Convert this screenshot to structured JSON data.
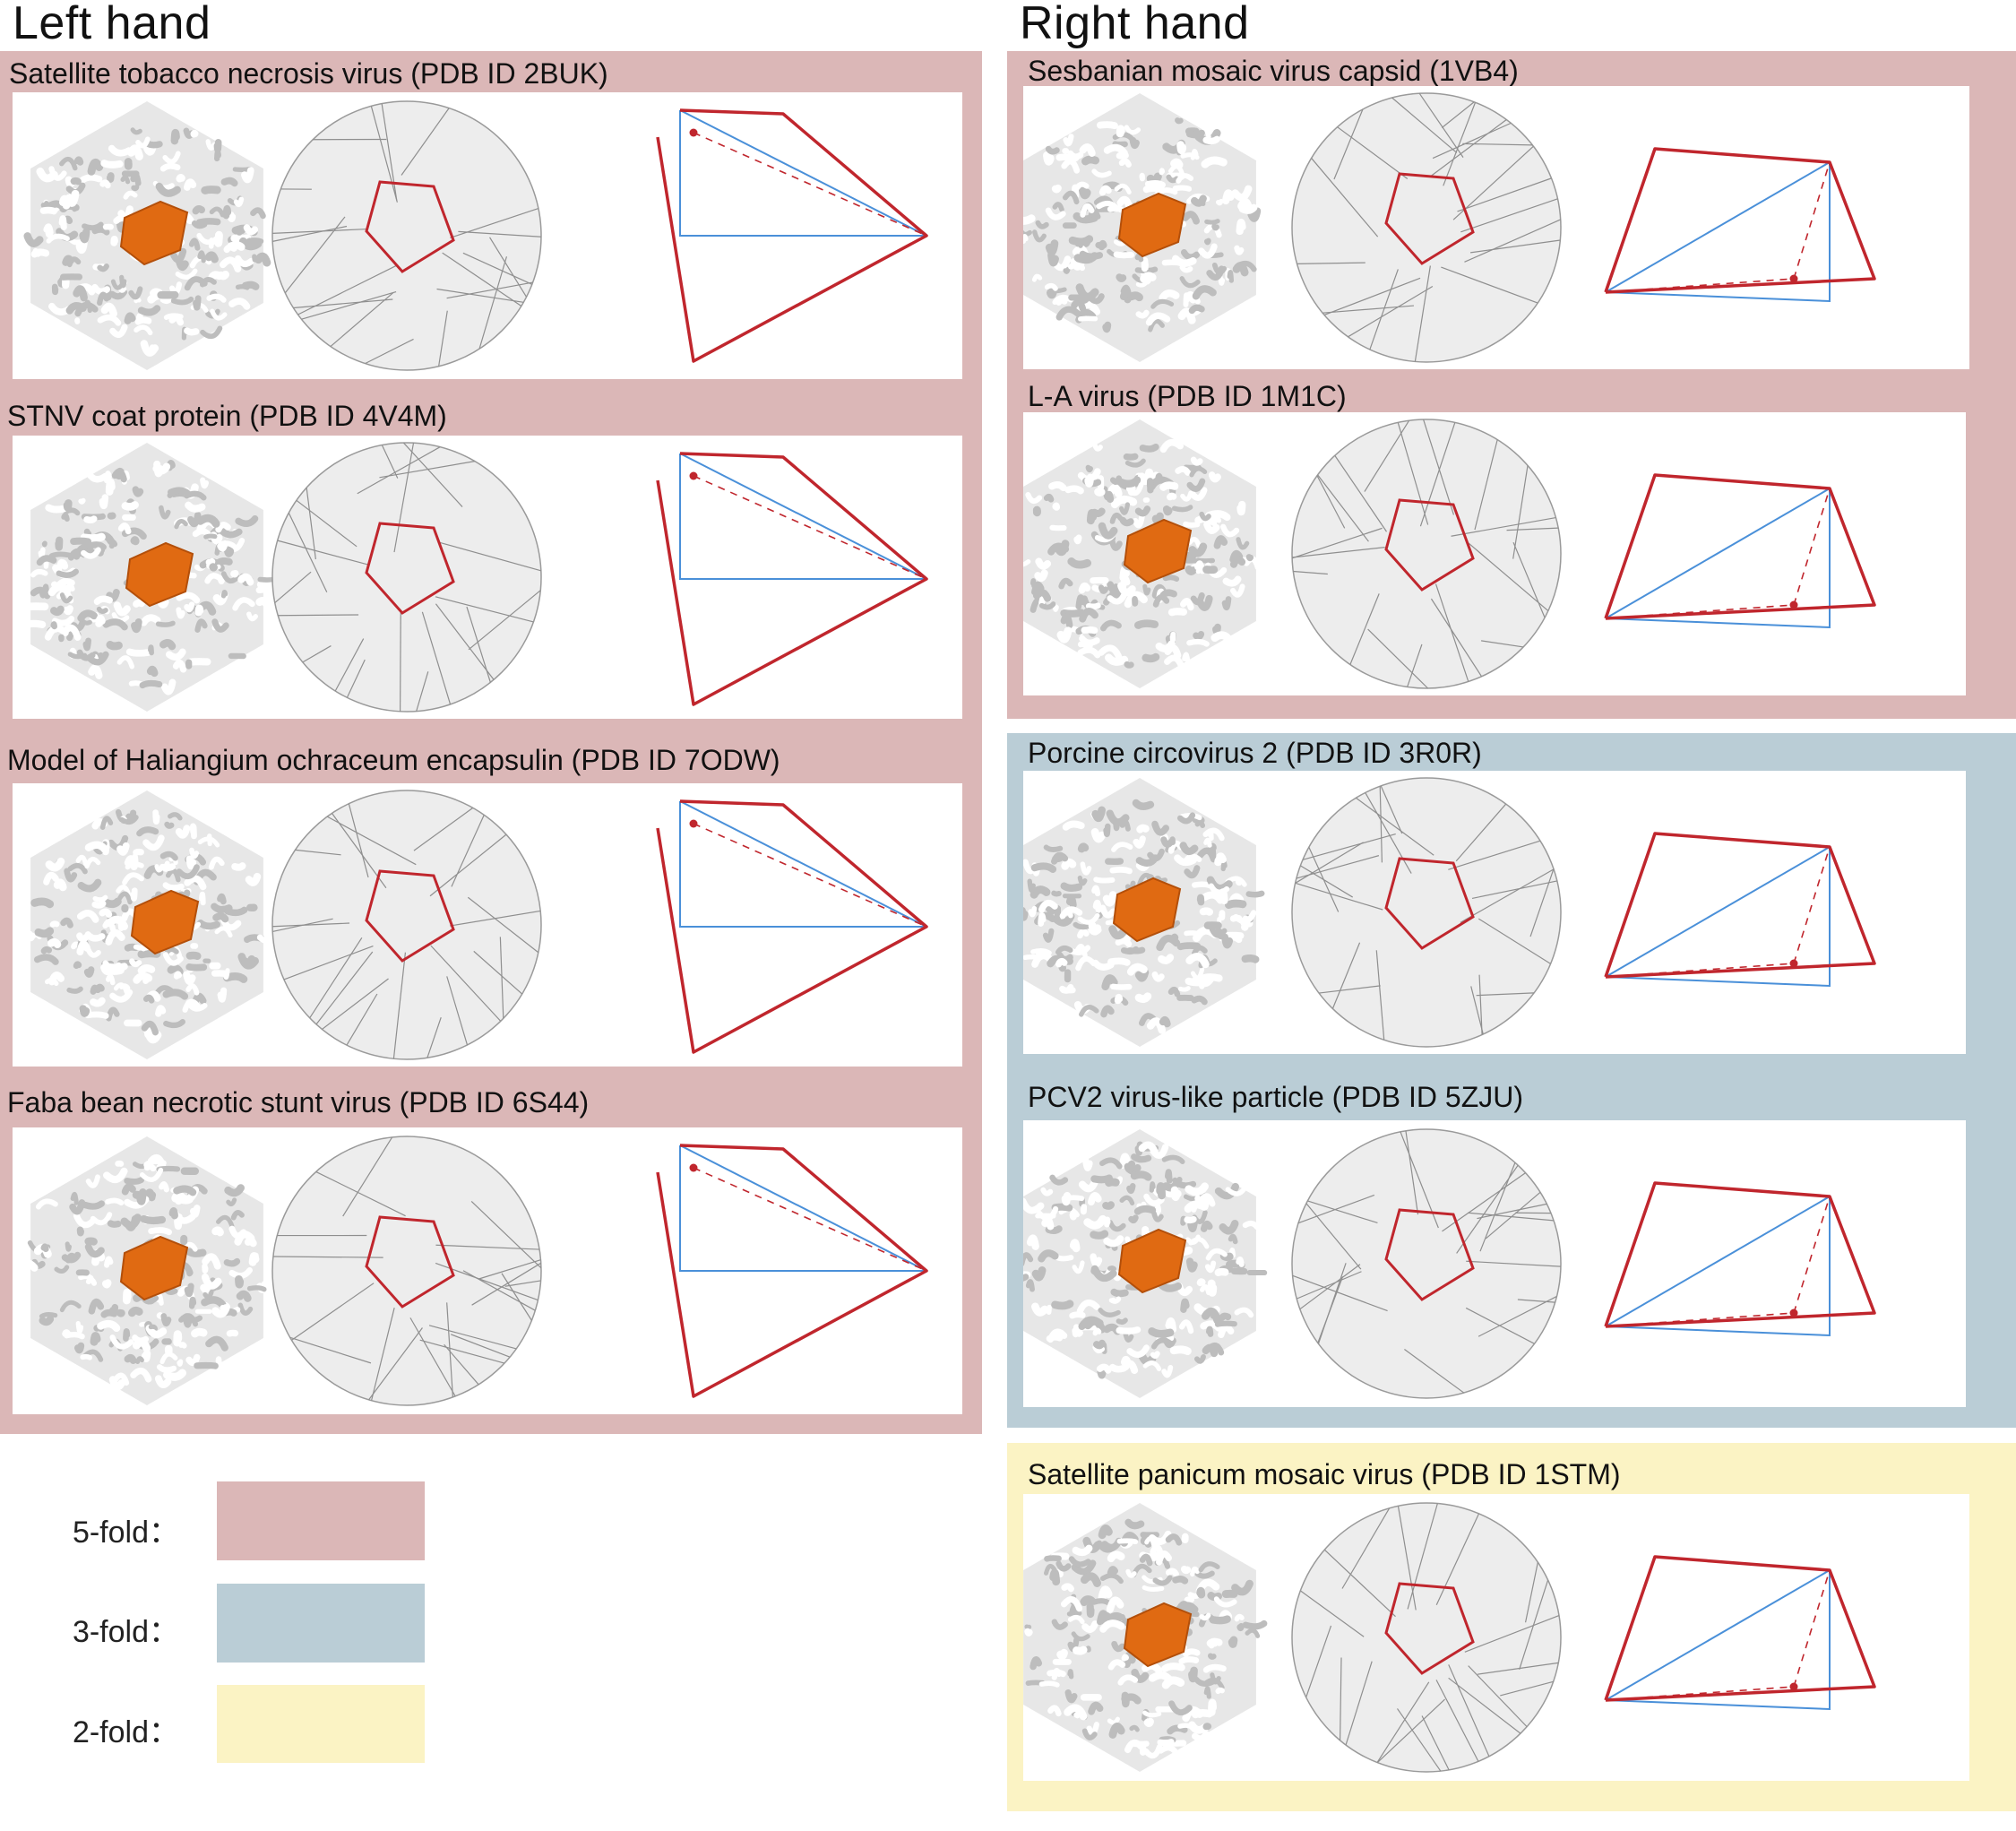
{
  "headings": {
    "left": "Left hand",
    "right": "Right hand"
  },
  "colors": {
    "fivefold": "#dbb7b7",
    "threefold": "#bacdd6",
    "twofold": "#fbf3c4",
    "outline_red": "#c0262d",
    "edge_blue": "#4a90d9",
    "orange": "#e06a12",
    "capsid_white": "#f2f2f2",
    "sphere_grey": "#ededed"
  },
  "cards": [
    {
      "title": "Satellite tobacco necrosis virus (PDB ID 2BUK)",
      "symmetry": "5-fold"
    },
    {
      "title": "STNV coat protein (PDB ID 4V4M)",
      "symmetry": "5-fold"
    },
    {
      "title": "Model of Haliangium ochraceum encapsulin (PDB ID 7ODW)",
      "symmetry": "5-fold"
    },
    {
      "title": "Faba bean necrotic stunt virus (PDB ID 6S44)",
      "symmetry": "5-fold"
    },
    {
      "title": "Sesbanian mosaic virus capsid (1VB4)",
      "symmetry": "5-fold"
    },
    {
      "title": "L-A virus (PDB ID 1M1C)",
      "symmetry": "5-fold"
    },
    {
      "title": "Porcine circovirus 2 (PDB ID 3R0R)",
      "symmetry": "3-fold"
    },
    {
      "title": "PCV2 virus-like particle (PDB ID 5ZJU)",
      "symmetry": "3-fold"
    },
    {
      "title": "Satellite panicum mosaic virus (PDB ID 1STM)",
      "symmetry": "2-fold"
    }
  ],
  "legend": [
    {
      "label": "5-fold：",
      "color": "#dbb7b7"
    },
    {
      "label": "3-fold：",
      "color": "#bacdd6"
    },
    {
      "label": "2-fold：",
      "color": "#fbf3c4"
    }
  ]
}
